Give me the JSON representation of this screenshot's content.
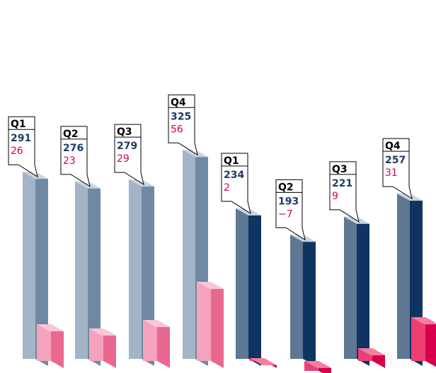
{
  "chart_data": {
    "type": "bar",
    "categories": [
      "Q1",
      "Q2",
      "Q3",
      "Q4",
      "Q1",
      "Q2",
      "Q3",
      "Q4"
    ],
    "groups": [
      "",
      ""
    ],
    "series": [
      {
        "values": [
          291,
          276,
          279,
          325,
          234,
          193,
          221,
          257
        ]
      },
      {
        "values": [
          26,
          23,
          29,
          56,
          2,
          -7,
          9,
          31
        ]
      }
    ],
    "ylim": [
      -10,
      330
    ],
    "grid": false,
    "legend": "none"
  },
  "colors": {
    "group_a_front": "#a3b4c6",
    "group_a_side": "#6f88a3",
    "group_a_top": "#c9d4df",
    "group_b_front": "#5e7893",
    "group_b_side": "#0f3462",
    "group_b_top": "#9dafc1",
    "small_a_front": "#f4a2bd",
    "small_a_side": "#e9688f",
    "small_a_top": "#f8c7d6",
    "small_b_front": "#ee3f73",
    "small_b_side": "#d8004c",
    "small_b_top": "#f37ea1",
    "label_value1": "#1d3b66",
    "label_value2": "#d6004f"
  }
}
